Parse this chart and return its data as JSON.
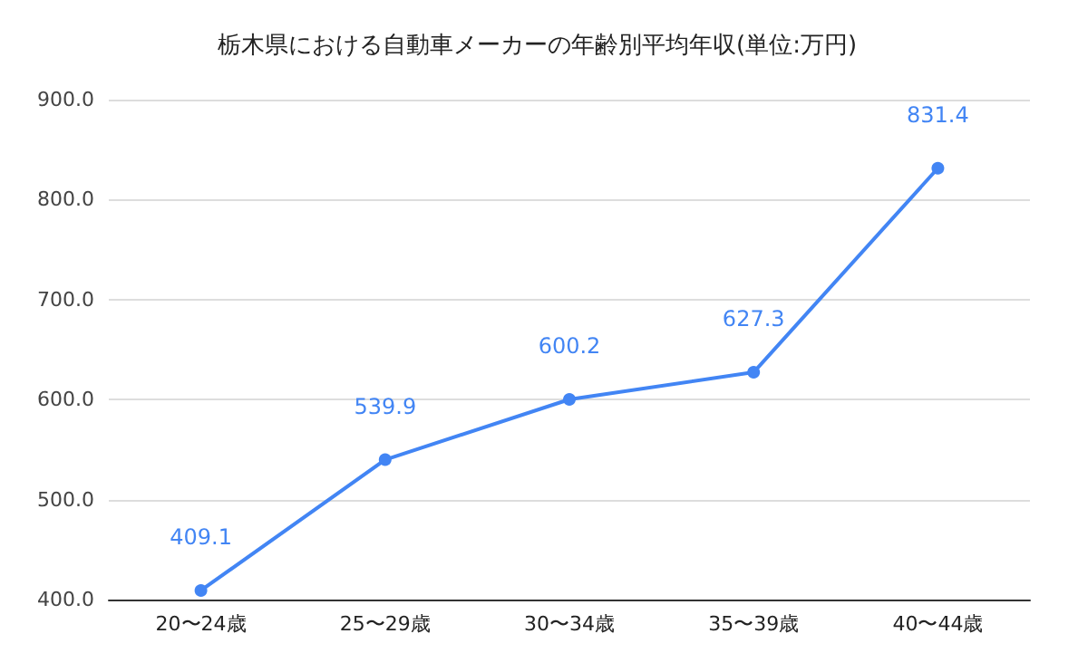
{
  "chart_data": {
    "type": "line",
    "title": "栃木県における自動車メーカーの年齢別平均年収(単位:万円)",
    "categories": [
      "20〜24歳",
      "25〜29歳",
      "30〜34歳",
      "35〜39歳",
      "40〜44歳"
    ],
    "series": [
      {
        "color": "#4285f4",
        "values": [
          409.1,
          539.9,
          600.2,
          627.3,
          831.4
        ]
      }
    ],
    "ylim": [
      400,
      900
    ],
    "yticks": [
      {
        "value": 400,
        "label": "400.0"
      },
      {
        "value": 500,
        "label": "500.0"
      },
      {
        "value": 600,
        "label": "600.0"
      },
      {
        "value": 700,
        "label": "700.0"
      },
      {
        "value": 800,
        "label": "800.0"
      },
      {
        "value": 900,
        "label": "900.0"
      }
    ],
    "grid": "y",
    "marker": "circle",
    "line_style": "solid",
    "data_labels": true
  }
}
